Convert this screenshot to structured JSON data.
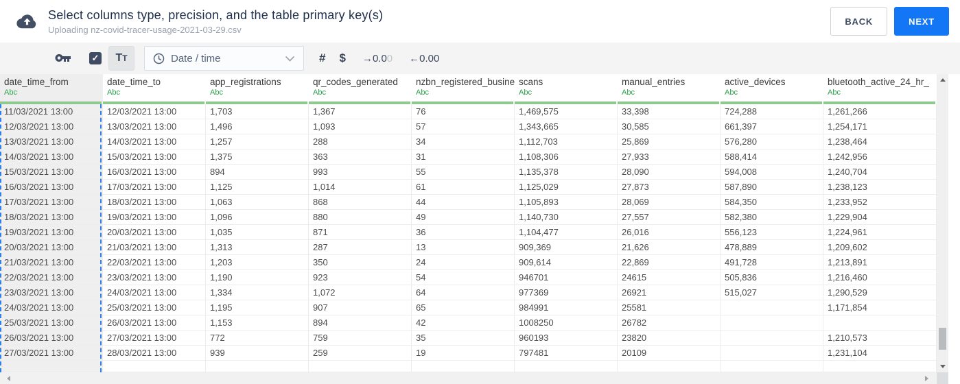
{
  "header": {
    "title": "Select columns type, precision, and the table primary key(s)",
    "subtitle": "Uploading nz-covid-tracer-usage-2021-03-29.csv",
    "back_label": "BACK",
    "next_label": "NEXT"
  },
  "toolbar": {
    "checkbox_checked": "✓",
    "text_type_big": "T",
    "text_type_small": "T",
    "type_select_value": "Date / time",
    "numeric_label": "#",
    "currency_label": "$",
    "precision": {
      "decrease_arrow": "→",
      "decrease_dark": "0.0",
      "decrease_faded": "0",
      "increase_label": "←0.00"
    }
  },
  "table": {
    "type_label": "Abc",
    "columns": [
      {
        "name": "date_time_from",
        "selected": true
      },
      {
        "name": "date_time_to",
        "selected": false
      },
      {
        "name": "app_registrations",
        "selected": false
      },
      {
        "name": "qr_codes_generated",
        "selected": false
      },
      {
        "name": "nzbn_registered_busine",
        "selected": false
      },
      {
        "name": "scans",
        "selected": false
      },
      {
        "name": "manual_entries",
        "selected": false
      },
      {
        "name": "active_devices",
        "selected": false
      },
      {
        "name": "bluetooth_active_24_hr_",
        "selected": false
      }
    ],
    "rows": [
      [
        "11/03/2021 13:00",
        "12/03/2021 13:00",
        "1,703",
        "1,367",
        "76",
        "1,469,575",
        "33,398",
        "724,288",
        "1,261,266"
      ],
      [
        "12/03/2021 13:00",
        "13/03/2021 13:00",
        "1,496",
        "1,093",
        "57",
        "1,343,665",
        "30,585",
        "661,397",
        "1,254,171"
      ],
      [
        "13/03/2021 13:00",
        "14/03/2021 13:00",
        "1,257",
        "288",
        "34",
        "1,112,703",
        "25,869",
        "576,280",
        "1,238,464"
      ],
      [
        "14/03/2021 13:00",
        "15/03/2021 13:00",
        "1,375",
        "363",
        "31",
        "1,108,306",
        "27,933",
        "588,414",
        "1,242,956"
      ],
      [
        "15/03/2021 13:00",
        "16/03/2021 13:00",
        "894",
        "993",
        "55",
        "1,135,378",
        "28,090",
        "594,008",
        "1,240,704"
      ],
      [
        "16/03/2021 13:00",
        "17/03/2021 13:00",
        "1,125",
        "1,014",
        "61",
        "1,125,029",
        "27,873",
        "587,890",
        "1,238,123"
      ],
      [
        "17/03/2021 13:00",
        "18/03/2021 13:00",
        "1,063",
        "868",
        "44",
        "1,105,893",
        "28,069",
        "584,350",
        "1,233,952"
      ],
      [
        "18/03/2021 13:00",
        "19/03/2021 13:00",
        "1,096",
        "880",
        "49",
        "1,140,730",
        "27,557",
        "582,380",
        "1,229,904"
      ],
      [
        "19/03/2021 13:00",
        "20/03/2021 13:00",
        "1,035",
        "871",
        "36",
        "1,104,477",
        "26,016",
        "556,123",
        "1,224,961"
      ],
      [
        "20/03/2021 13:00",
        "21/03/2021 13:00",
        "1,313",
        "287",
        "13",
        "909,369",
        "21,626",
        "478,889",
        "1,209,602"
      ],
      [
        "21/03/2021 13:00",
        "22/03/2021 13:00",
        "1,203",
        "350",
        "24",
        "909,614",
        "22,869",
        "491,728",
        "1,213,891"
      ],
      [
        "22/03/2021 13:00",
        "23/03/2021 13:00",
        "1,190",
        "923",
        "54",
        "946701",
        "24615",
        "505,836",
        "1,216,460"
      ],
      [
        "23/03/2021 13:00",
        "24/03/2021 13:00",
        "1,334",
        "1,072",
        "64",
        "977369",
        "26921",
        "515,027",
        "1,290,529"
      ],
      [
        "24/03/2021 13:00",
        "25/03/2021 13:00",
        "1,195",
        "907",
        "65",
        "984991",
        "25581",
        "",
        "1,171,854"
      ],
      [
        "25/03/2021 13:00",
        "26/03/2021 13:00",
        "1,153",
        "894",
        "42",
        "1008250",
        "26782",
        "",
        ""
      ],
      [
        "26/03/2021 13:00",
        "27/03/2021 13:00",
        "772",
        "759",
        "35",
        "960193",
        "23820",
        "",
        "1,210,573"
      ],
      [
        "27/03/2021 13:00",
        "28/03/2021 13:00",
        "939",
        "259",
        "19",
        "797481",
        "20109",
        "",
        "1,231,104"
      ]
    ]
  },
  "colors": {
    "accent_blue": "#1276f5",
    "selection_dashed_blue": "#2f7fe8",
    "type_green": "#2ca04b",
    "header_underline_green": "#8fc98f",
    "icon_navy": "#3e4b63",
    "title_navy": "#20304c"
  }
}
